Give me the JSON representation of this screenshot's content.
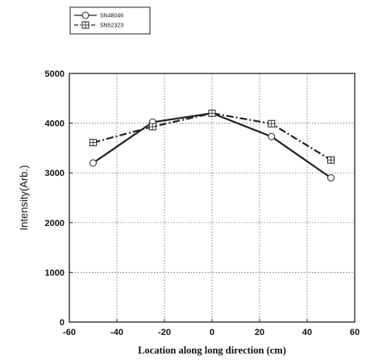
{
  "chart_data": {
    "type": "line",
    "title": "",
    "xlabel": "Location along long direction (cm)",
    "ylabel": "Intensity(Arb.)",
    "xlim": [
      -60,
      60
    ],
    "ylim": [
      0,
      5000
    ],
    "x_ticks": [
      -60,
      -40,
      -20,
      0,
      20,
      40,
      60
    ],
    "y_ticks": [
      0,
      1000,
      2000,
      3000,
      4000,
      5000
    ],
    "grid": true,
    "legend_position": "top-left, outside plot",
    "series": [
      {
        "name": "SN48046",
        "marker": "circle",
        "line_style": "solid",
        "color": "#222222",
        "x": [
          -50,
          -25,
          0,
          25,
          50
        ],
        "y": [
          3200,
          4020,
          4200,
          3730,
          2900
        ]
      },
      {
        "name": "SN52323",
        "marker": "square-cross",
        "line_style": "dash-dot",
        "color": "#222222",
        "x": [
          -50,
          -25,
          0,
          25,
          50
        ],
        "y": [
          3610,
          3930,
          4200,
          3990,
          3260
        ]
      }
    ]
  }
}
